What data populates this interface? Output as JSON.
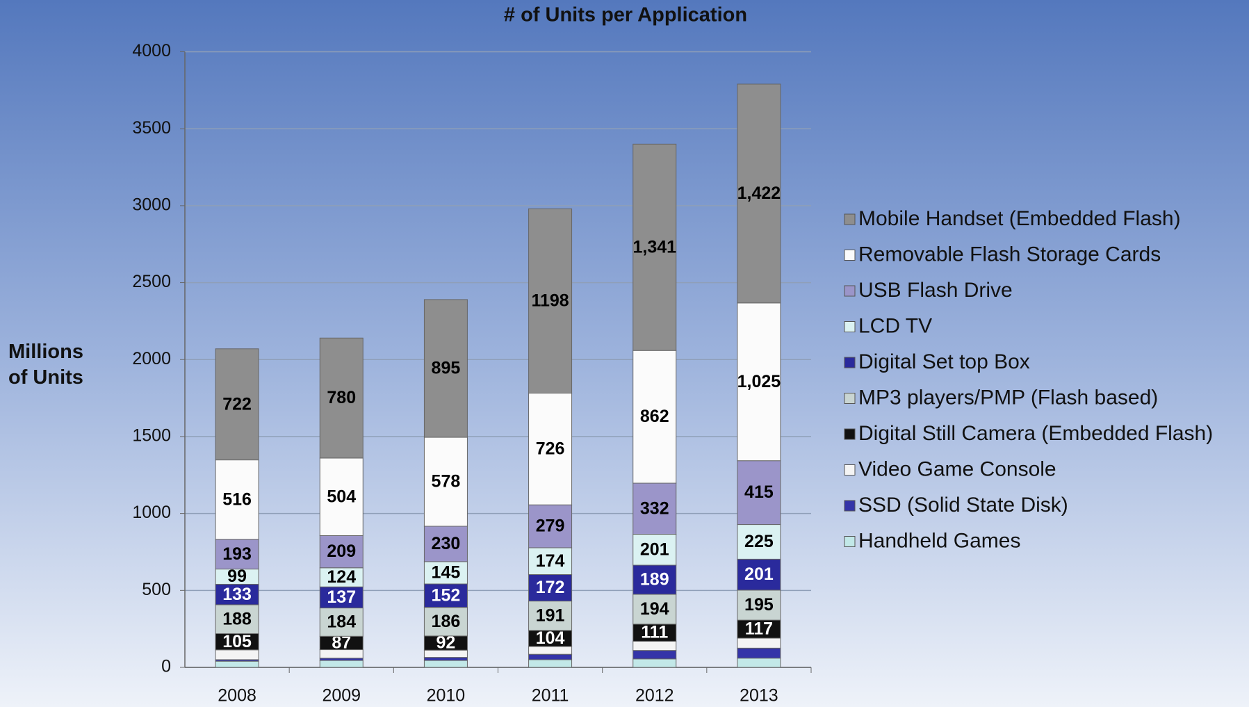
{
  "chart_data": {
    "type": "stacked_bar",
    "title": "# of Units per Application",
    "y_label": "Millions of Units",
    "categories": [
      "2008",
      "2009",
      "2010",
      "2011",
      "2012",
      "2013"
    ],
    "ylim": [
      0,
      4000
    ],
    "yticks": [
      0,
      500,
      1000,
      1500,
      2000,
      2500,
      3000,
      3500,
      4000
    ],
    "grid": true,
    "legend": "right",
    "series": [
      {
        "name": "Handheld Games",
        "color": "#c2e8e8",
        "values": [
          40,
          45,
          45,
          50,
          55,
          60
        ]
      },
      {
        "name": "SSD (Solid State Disk)",
        "color": "#3434a8",
        "values": [
          10,
          15,
          20,
          35,
          55,
          65
        ]
      },
      {
        "name": "Video Game Console",
        "color": "#f4f4f4",
        "values": [
          64,
          55,
          47,
          51,
          60,
          65
        ]
      },
      {
        "name": "Digital Still Camera (Embedded Flash)",
        "color": "#111111",
        "label_color": "#ffffff",
        "values": [
          105,
          87,
          92,
          104,
          111,
          117
        ],
        "value_labels": [
          "105",
          "87",
          "92",
          "104",
          "111",
          "117"
        ]
      },
      {
        "name": "MP3 players/PMP  (Flash based)",
        "color": "#c9d5d2",
        "label_color": "#000000",
        "values": [
          188,
          184,
          186,
          191,
          194,
          195
        ],
        "value_labels": [
          "188",
          "184",
          "186",
          "191",
          "194",
          "195"
        ]
      },
      {
        "name": "Digital Set top Box",
        "color": "#2a2a9c",
        "label_color": "#ffffff",
        "values": [
          133,
          137,
          152,
          172,
          189,
          201
        ],
        "value_labels": [
          "133",
          "137",
          "152",
          "172",
          "189",
          "201"
        ]
      },
      {
        "name": "LCD TV",
        "color": "#dbf2f2",
        "label_color": "#000000",
        "values": [
          99,
          124,
          145,
          174,
          201,
          225
        ],
        "value_labels": [
          "99",
          "124",
          "145",
          "174",
          "201",
          "225"
        ]
      },
      {
        "name": "USB Flash Drive",
        "color": "#9b95c9",
        "label_color": "#000000",
        "values": [
          193,
          209,
          230,
          279,
          332,
          415
        ],
        "value_labels": [
          "193",
          "209",
          "230",
          "279",
          "332",
          "415"
        ]
      },
      {
        "name": "Removable Flash Storage Cards",
        "color": "#fbfbfb",
        "label_color": "#000000",
        "values": [
          516,
          504,
          578,
          726,
          862,
          1025
        ],
        "value_labels": [
          "516",
          "504",
          "578",
          "726",
          "862",
          "1,025"
        ]
      },
      {
        "name": "Mobile Handset (Embedded Flash)",
        "color": "#8e8e8e",
        "label_color": "#000000",
        "values": [
          722,
          780,
          895,
          1198,
          1341,
          1422
        ],
        "value_labels": [
          "722",
          "780",
          "895",
          "1198",
          "1,341",
          "1,422"
        ]
      }
    ]
  }
}
